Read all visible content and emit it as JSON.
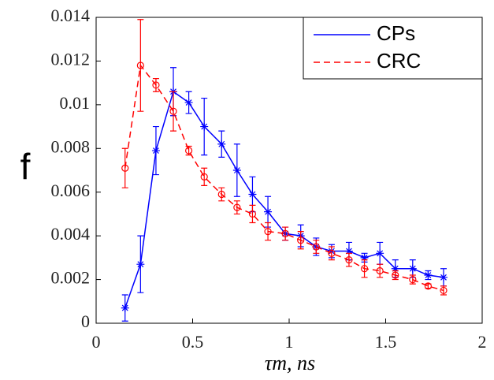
{
  "chart_data": {
    "type": "line",
    "x_label": "τm, ns",
    "y_label": "f",
    "x": [
      0.15,
      0.23,
      0.31,
      0.4,
      0.48,
      0.56,
      0.65,
      0.73,
      0.81,
      0.89,
      0.98,
      1.06,
      1.14,
      1.22,
      1.31,
      1.39,
      1.47,
      1.55,
      1.64,
      1.72,
      1.8
    ],
    "series": [
      {
        "name": "CPs",
        "color": "#0000ff",
        "dash": false,
        "marker": "star",
        "values": [
          0.0007,
          0.0027,
          0.0079,
          0.0106,
          0.0101,
          0.009,
          0.0082,
          0.007,
          0.0059,
          0.0051,
          0.0041,
          0.004,
          0.0035,
          0.0033,
          0.0033,
          0.003,
          0.0032,
          0.0025,
          0.0025,
          0.0022,
          0.0021
        ],
        "errors": [
          0.0006,
          0.0013,
          0.0011,
          0.0011,
          0.0005,
          0.0013,
          0.0006,
          0.0012,
          0.0008,
          0.0007,
          0.0003,
          0.0005,
          0.0004,
          0.0003,
          0.0004,
          0.0002,
          0.0005,
          0.0004,
          0.0004,
          0.0002,
          0.0004
        ]
      },
      {
        "name": "CRC",
        "color": "#ff0000",
        "dash": true,
        "marker": "circle",
        "values": [
          0.0071,
          0.0118,
          0.0109,
          0.0097,
          0.0079,
          0.0067,
          0.0059,
          0.0053,
          0.005,
          0.0042,
          0.0041,
          0.0038,
          0.0035,
          0.0032,
          0.0029,
          0.0025,
          0.0024,
          0.0022,
          0.002,
          0.0017,
          0.0015
        ],
        "errors": [
          0.0009,
          0.0021,
          0.0003,
          0.0009,
          0.0002,
          0.0004,
          0.0003,
          0.0003,
          0.0004,
          0.0004,
          0.0003,
          0.0004,
          0.0003,
          0.0003,
          0.0003,
          0.0004,
          0.0003,
          0.0002,
          0.0002,
          0.0001,
          0.0002
        ]
      }
    ],
    "xlim": [
      0,
      2
    ],
    "xticks": [
      0,
      0.5,
      1,
      1.5,
      2
    ],
    "ylim": [
      0,
      0.014
    ],
    "yticks": [
      0,
      0.002,
      0.004,
      0.006,
      0.008,
      0.01,
      0.012,
      0.014
    ],
    "legend": "upper right",
    "grid": false
  }
}
